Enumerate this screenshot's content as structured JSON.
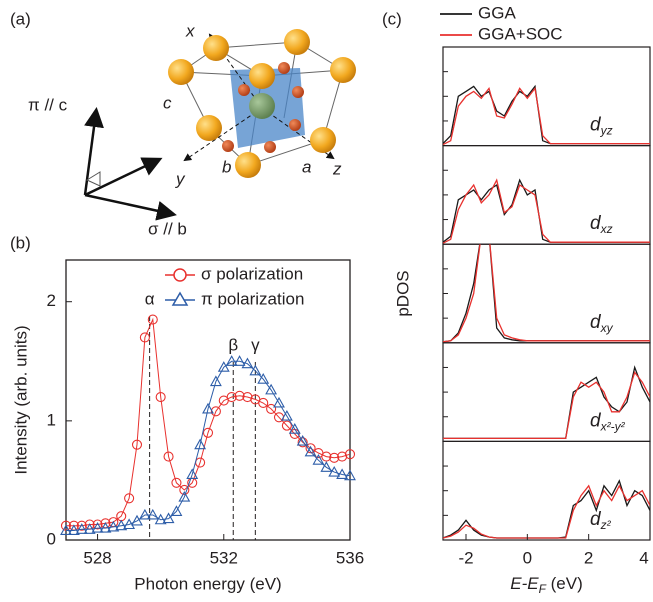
{
  "panel_labels": [
    "(a)",
    "(b)",
    "(c)"
  ],
  "diagram": {
    "pi_label": "π // c",
    "sigma_label": "σ // b",
    "axis_x": "x",
    "axis_y": "y",
    "axis_z": "z",
    "edge_a": "a",
    "edge_b": "b",
    "edge_c": "c"
  },
  "chart_data": [
    {
      "type": "scatter",
      "xlabel": "Photon energy (eV)",
      "ylabel": "Intensity (arb. units)",
      "x": [
        527,
        527.25,
        527.5,
        527.75,
        528,
        528.25,
        528.5,
        528.75,
        529,
        529.25,
        529.5,
        529.75,
        530,
        530.25,
        530.5,
        530.75,
        531,
        531.25,
        531.5,
        531.75,
        532,
        532.25,
        532.5,
        532.75,
        533,
        533.25,
        533.5,
        533.75,
        534,
        534.25,
        534.5,
        534.75,
        535,
        535.25,
        535.5,
        535.75,
        536
      ],
      "series": [
        {
          "name": "σ polarization",
          "color": "#e8312e",
          "marker": "circle",
          "values": [
            0.12,
            0.12,
            0.12,
            0.13,
            0.13,
            0.14,
            0.15,
            0.2,
            0.35,
            0.8,
            1.7,
            1.85,
            1.2,
            0.7,
            0.48,
            0.42,
            0.48,
            0.65,
            0.9,
            1.08,
            1.17,
            1.2,
            1.21,
            1.2,
            1.18,
            1.15,
            1.1,
            1.03,
            0.96,
            0.89,
            0.82,
            0.77,
            0.73,
            0.7,
            0.69,
            0.7,
            0.72
          ]
        },
        {
          "name": "π polarization",
          "color": "#2d5da8",
          "marker": "triangle",
          "values": [
            0.08,
            0.08,
            0.09,
            0.09,
            0.1,
            0.1,
            0.11,
            0.12,
            0.13,
            0.16,
            0.21,
            0.21,
            0.17,
            0.18,
            0.24,
            0.36,
            0.55,
            0.8,
            1.1,
            1.33,
            1.45,
            1.5,
            1.5,
            1.48,
            1.42,
            1.35,
            1.26,
            1.15,
            1.04,
            0.93,
            0.83,
            0.74,
            0.67,
            0.61,
            0.57,
            0.55,
            0.54
          ]
        }
      ],
      "annotations": [
        {
          "text": "α",
          "x": 529.65
        },
        {
          "text": "β",
          "x": 532.3
        },
        {
          "text": "γ",
          "x": 533.0
        }
      ],
      "xlim": [
        527,
        536
      ],
      "xticks": [
        528,
        532,
        536
      ],
      "ylim": [
        0,
        2.35
      ],
      "yticks": [
        0,
        1,
        2
      ],
      "legend": "top-right"
    },
    {
      "type": "line",
      "xlabel": {
        "main": "E-E",
        "sub": "F",
        "unit": " (eV)"
      },
      "ylabel": "pDOS",
      "series": [
        {
          "name": "GGA",
          "color": "#1a1a1a"
        },
        {
          "name": "GGA+SOC",
          "color": "#e8312e"
        }
      ],
      "x": [
        -2.75,
        -2.5,
        -2.25,
        -2,
        -1.75,
        -1.5,
        -1.25,
        -1,
        -0.75,
        -0.5,
        -0.25,
        0,
        0.25,
        0.5,
        0.75,
        1,
        1.25,
        1.5,
        1.75,
        2,
        2.25,
        2.5,
        2.75,
        3,
        3.25,
        3.5,
        3.75,
        4
      ],
      "xlim": [
        -2.75,
        4
      ],
      "xticks": [
        -2,
        0,
        2,
        4
      ],
      "ylim": [
        0,
        1
      ],
      "panels": [
        {
          "label": "d",
          "sub": "yz",
          "values": [
            [
              0.02,
              0.1,
              0.5,
              0.55,
              0.6,
              0.5,
              0.55,
              0.35,
              0.3,
              0.45,
              0.55,
              0.5,
              0.6,
              0.05,
              0.02,
              0.02,
              0.02,
              0.02,
              0.02,
              0.02,
              0.02,
              0.02,
              0.02,
              0.02,
              0.02,
              0.02,
              0.02,
              0.02
            ],
            [
              0.01,
              0.05,
              0.4,
              0.5,
              0.55,
              0.48,
              0.58,
              0.3,
              0.28,
              0.42,
              0.58,
              0.48,
              0.58,
              0.1,
              0.02,
              0.02,
              0.02,
              0.02,
              0.02,
              0.02,
              0.02,
              0.02,
              0.02,
              0.02,
              0.02,
              0.02,
              0.02,
              0.02
            ]
          ]
        },
        {
          "label": "d",
          "sub": "xz",
          "values": [
            [
              0.02,
              0.08,
              0.45,
              0.5,
              0.55,
              0.45,
              0.55,
              0.6,
              0.3,
              0.4,
              0.65,
              0.5,
              0.55,
              0.05,
              0.02,
              0.02,
              0.02,
              0.02,
              0.02,
              0.02,
              0.02,
              0.02,
              0.02,
              0.02,
              0.02,
              0.02,
              0.02,
              0.02
            ],
            [
              0.01,
              0.05,
              0.35,
              0.5,
              0.6,
              0.42,
              0.5,
              0.65,
              0.32,
              0.38,
              0.6,
              0.55,
              0.5,
              0.1,
              0.02,
              0.02,
              0.02,
              0.02,
              0.02,
              0.02,
              0.02,
              0.02,
              0.02,
              0.02,
              0.02,
              0.02,
              0.02,
              0.02
            ]
          ]
        },
        {
          "label": "d",
          "sub": "xy",
          "values": [
            [
              0.01,
              0.02,
              0.1,
              0.3,
              0.6,
              1.1,
              1.1,
              0.15,
              0.05,
              0.03,
              0.02,
              0.02,
              0.02,
              0.02,
              0.02,
              0.02,
              0.02,
              0.02,
              0.02,
              0.02,
              0.02,
              0.02,
              0.02,
              0.02,
              0.02,
              0.02,
              0.02,
              0.02
            ],
            [
              0.01,
              0.02,
              0.08,
              0.25,
              0.5,
              1.1,
              1.1,
              0.25,
              0.08,
              0.05,
              0.03,
              0.02,
              0.02,
              0.02,
              0.02,
              0.02,
              0.02,
              0.02,
              0.02,
              0.02,
              0.02,
              0.02,
              0.02,
              0.02,
              0.02,
              0.02,
              0.02,
              0.02
            ]
          ]
        },
        {
          "label": "d",
          "sub": "x²-y²",
          "values": [
            [
              0.03,
              0.03,
              0.03,
              0.03,
              0.03,
              0.03,
              0.03,
              0.03,
              0.03,
              0.03,
              0.03,
              0.03,
              0.03,
              0.03,
              0.03,
              0.03,
              0.03,
              0.5,
              0.55,
              0.6,
              0.65,
              0.45,
              0.35,
              0.3,
              0.4,
              0.75,
              0.55,
              0.4
            ],
            [
              0.03,
              0.03,
              0.03,
              0.03,
              0.03,
              0.03,
              0.03,
              0.03,
              0.03,
              0.03,
              0.03,
              0.03,
              0.03,
              0.03,
              0.03,
              0.03,
              0.03,
              0.45,
              0.6,
              0.55,
              0.6,
              0.5,
              0.3,
              0.3,
              0.45,
              0.7,
              0.6,
              0.45
            ]
          ]
        },
        {
          "label": "d",
          "sub": "z²",
          "values": [
            [
              0.02,
              0.05,
              0.1,
              0.2,
              0.1,
              0.05,
              0.03,
              0.02,
              0.02,
              0.02,
              0.02,
              0.02,
              0.02,
              0.02,
              0.02,
              0.02,
              0.03,
              0.35,
              0.4,
              0.5,
              0.3,
              0.55,
              0.45,
              0.6,
              0.35,
              0.5,
              0.45,
              0.3
            ],
            [
              0.02,
              0.04,
              0.08,
              0.15,
              0.12,
              0.06,
              0.03,
              0.02,
              0.02,
              0.02,
              0.02,
              0.02,
              0.02,
              0.02,
              0.02,
              0.02,
              0.02,
              0.3,
              0.45,
              0.55,
              0.35,
              0.5,
              0.4,
              0.55,
              0.4,
              0.45,
              0.5,
              0.35
            ]
          ]
        }
      ]
    }
  ]
}
